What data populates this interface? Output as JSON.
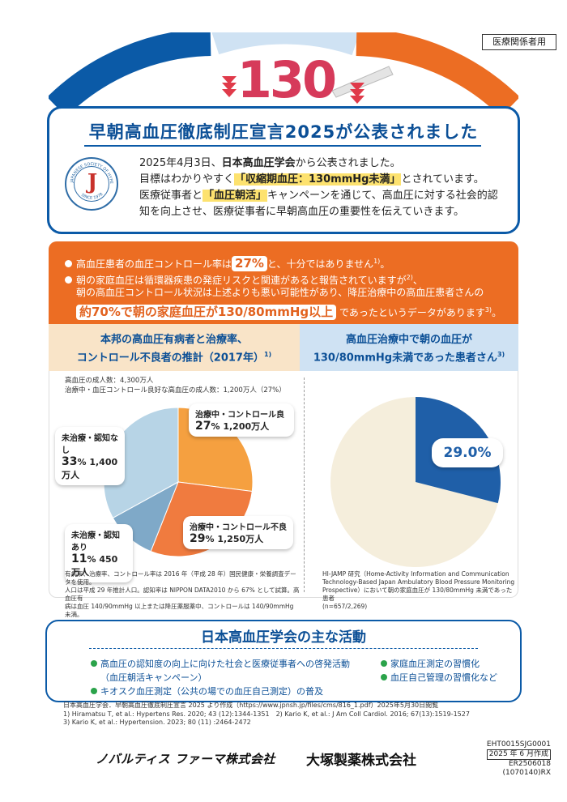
{
  "audience_tag": "医療関係者用",
  "hero": {
    "number": "130",
    "title": "早朝高血圧徹底制圧宣言2025が公表されました",
    "line1_pre": "2025年4月3日、",
    "line1_org": "日本高血圧学会",
    "line1_post": "から公表されました。",
    "line2_pre": "目標はわかりやすく",
    "line2_goal": "「収縮期血圧：130mmHg未満」",
    "line2_post": "とされています。",
    "line3_pre": "医療従事者と",
    "line3_campaign": "「血圧朝活」",
    "line3_post": "キャンペーンを通じて、高血圧に対する社会的認",
    "line4": "知を向上させ、医療従事者に早朝高血圧の重要性を伝えていきます。",
    "seal_letter": "J",
    "seal_text_top": "JAPANESE SOCIETY OF HYPERTENSION",
    "seal_text_bottom": "SINCE 1978"
  },
  "orange": {
    "b1_pre": "高血圧患者の血圧コントロール率は",
    "b1_pct": "27%",
    "b1_post": "と、十分ではありません",
    "b1_ref": "1)",
    "b1_end": "。",
    "b2_line1": "朝の家庭血圧は循環器疾患の発症リスクと関連があると報告されていますが",
    "b2_ref": "2)",
    "b2_line1_end": "、",
    "b2_line2": "朝の高血圧コントロール状況は上述よりも悪い可能性があり、降圧治療中の高血圧患者さんの",
    "b2_pill": "約70%で朝の家庭血圧が130/80mmHg以上",
    "b2_post": "であったというデータがあります",
    "b2_ref2": "3)",
    "b2_end": "。"
  },
  "left": {
    "head1": "本邦の高血圧有病者と治療率、",
    "head2": "コントロール不良者の推計（2017年）",
    "head_ref": "1)",
    "meta1": "高血圧の成人数：4,300万人",
    "meta2": "治療中・血圧コントロール良好な高血圧の成人数：1,200万人（27%）",
    "note1": "有病率、治療率、コントロール率は 2016 年（平成 28 年）国民健康・栄養調査データを使用。",
    "note2": "人口は平成 29 年推計人口。認知率は NIPPON DATA2010 から 67% として試算。高血圧有",
    "note3": "病は血圧 140/90mmHg 以上または降圧薬服薬中、コントロールは 140/90mmHg 未満。"
  },
  "right": {
    "head1": "高血圧治療中で朝の血圧が",
    "head2": "130/80mmHg未満であった患者さん",
    "head_ref": "3)",
    "pct_label": "29.0%",
    "note1": "HI-JAMP 研究（Home-Activity Information and Communication",
    "note2": "Technology-Based Japan Ambulatory Blood Pressure Monitoring",
    "note3": "Prospective）において朝の家庭血圧が 130/80mmHg 未満であった患者",
    "note4": "(n=657/2,269)"
  },
  "chart_data": [
    {
      "type": "pie",
      "title": "本邦の高血圧有病者と治療率、コントロール不良者の推計（2017年）",
      "categories": [
        "治療中・コントロール良",
        "治療中・コントロール不良",
        "未治療・認知あり",
        "未治療・認知なし"
      ],
      "values": [
        27,
        29,
        11,
        33
      ],
      "value_labels": [
        "27% 1,200万人",
        "29% 1,250万人",
        "11% 450万人",
        "33% 1,400万人"
      ],
      "pct_labels": [
        "27",
        "29",
        "11",
        "33"
      ],
      "count_labels": [
        "1,200万人",
        "1,250万人",
        "450万人",
        "1,400万人"
      ],
      "colors": [
        "#f5a040",
        "#f07b3f",
        "#7fa9c8",
        "#b7d4e6"
      ],
      "legend": "callouts"
    },
    {
      "type": "pie",
      "title": "高血圧治療中で朝の血圧が130/80mmHg未満であった患者さん",
      "categories": [
        "130/80mmHg未満",
        "130/80mmHg以上"
      ],
      "values": [
        29.0,
        71.0
      ],
      "colors": [
        "#1f5fa8",
        "#f5eedc"
      ],
      "legend": "none"
    }
  ],
  "activities": {
    "title": "日本高血圧学会の主な活動",
    "item1a": "高血圧の認知度の向上に向けた社会と医療従事者への啓発活動",
    "item1b": "（血圧朝活キャンペーン）",
    "item2": "キオスク血圧測定（公共の場での血圧自己測定）の普及",
    "item3": "家庭血圧測定の習慣化",
    "item4": "血圧自己管理の習慣化など"
  },
  "refs": {
    "r0": "日本高血圧学会．早朝高血圧徹底制圧宣言 2025 より作成（https://www.jpnsh.jp/files/cms/816_1.pdf）2025年5月30日閲覧",
    "r1": "1) Hiramatsu T, et al.: Hypertens Res. 2020; 43 (12):1344-1351　2) Kario K, et al.: J Am Coll Cardiol. 2016; 67(13):1519-1527",
    "r2": "3) Kario K, et al.: Hypertension. 2023; 80 (11) :2464-2472"
  },
  "footer": {
    "company1": "ノバルティス ファーマ株式会社",
    "company2": "大塚製薬株式会社",
    "code1": "EHT0015SJG0001",
    "code2": "2025 年 6 月作成",
    "code3": "ER2506018",
    "code4": "(1070140)RX"
  }
}
